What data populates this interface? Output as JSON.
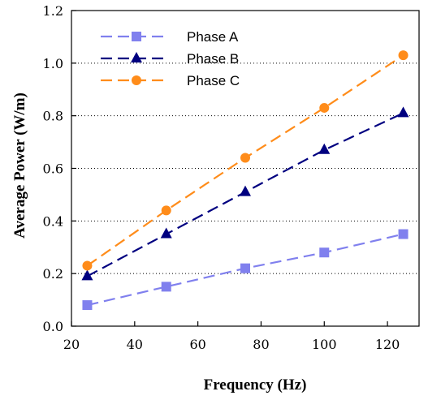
{
  "chart_data": {
    "type": "line",
    "title": "",
    "xlabel": "Frequency (Hz)",
    "ylabel": "Average Power (W/m)",
    "xlim": [
      20,
      130
    ],
    "ylim": [
      0,
      1.2
    ],
    "xticks": [
      20,
      40,
      60,
      80,
      100,
      120
    ],
    "yticks": [
      0.0,
      0.2,
      0.4,
      0.6,
      0.8,
      1.0,
      1.2
    ],
    "xtick_labels": [
      "20",
      "40",
      "60",
      "80",
      "100",
      "120"
    ],
    "ytick_labels": [
      "0.0",
      "0.2",
      "0.4",
      "0.6",
      "0.8",
      "1.0",
      "1.2"
    ],
    "grid": "horizontal dotted",
    "legend_position": "top-left",
    "x": [
      25,
      50,
      75,
      100,
      125
    ],
    "series": [
      {
        "name": "Phase A",
        "values": [
          0.08,
          0.15,
          0.22,
          0.28,
          0.35
        ],
        "color": "#8080ee",
        "marker": "square"
      },
      {
        "name": "Phase B",
        "values": [
          0.19,
          0.35,
          0.51,
          0.67,
          0.81
        ],
        "color": "#000080",
        "marker": "triangle"
      },
      {
        "name": "Phase C",
        "values": [
          0.23,
          0.44,
          0.64,
          0.83,
          1.03
        ],
        "color": "#ff8c1a",
        "marker": "circle"
      }
    ]
  }
}
